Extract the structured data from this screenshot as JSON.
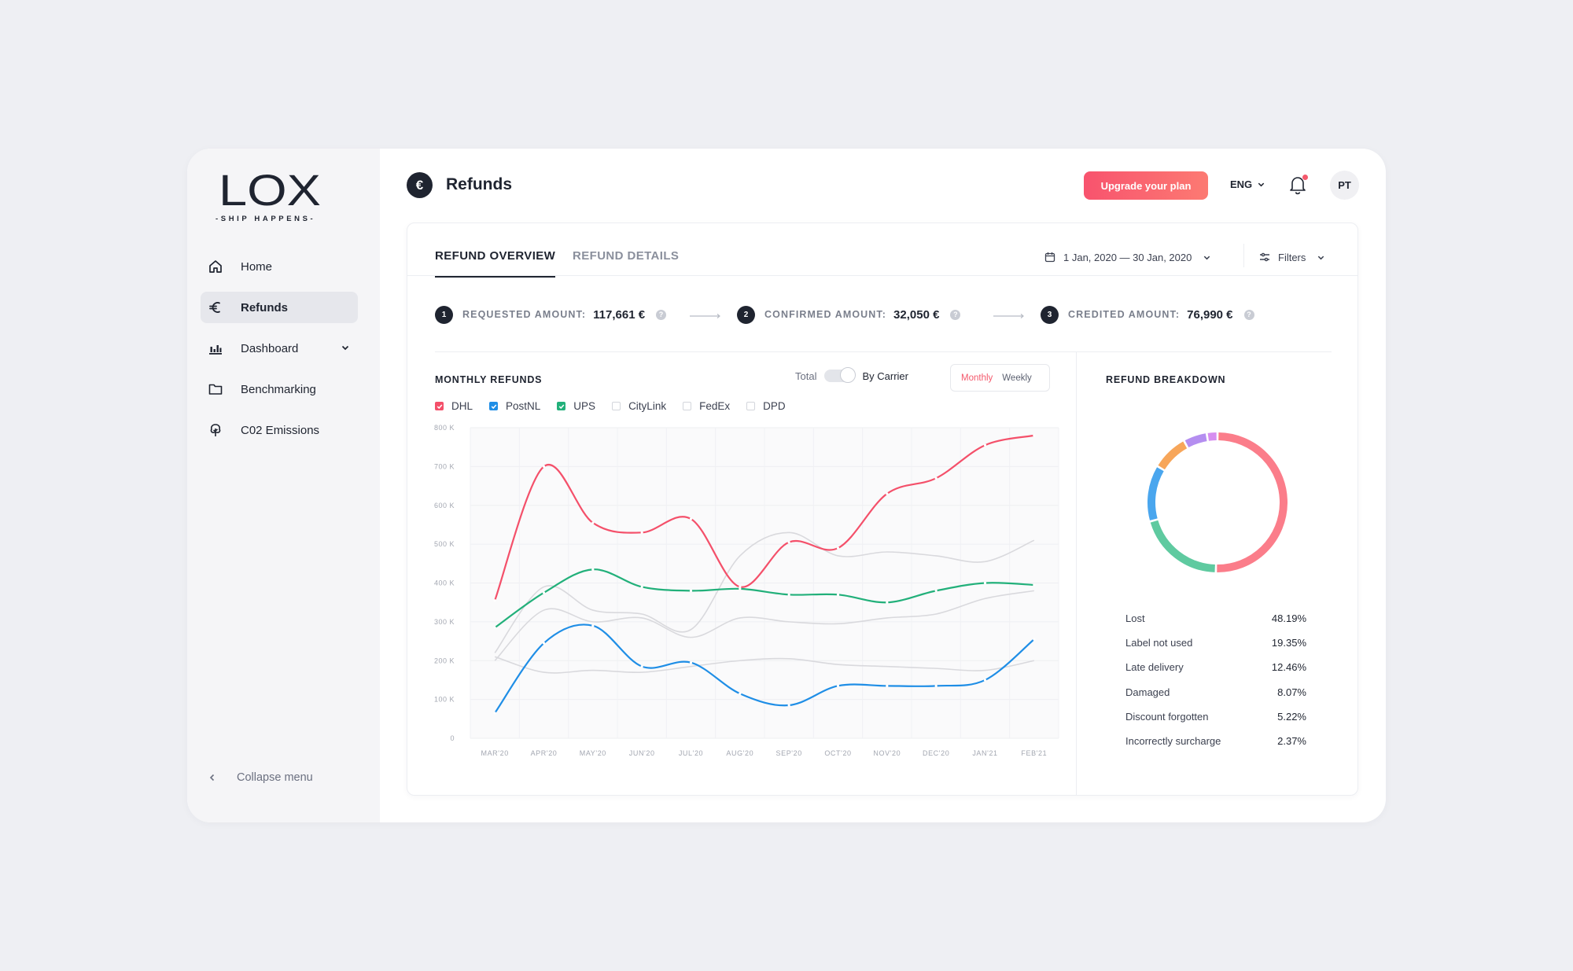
{
  "sidebar": {
    "logo_text": "LOX",
    "logo_tagline": "-SHIP HAPPENS-",
    "items": [
      {
        "label": "Home",
        "icon": "home-icon"
      },
      {
        "label": "Refunds",
        "icon": "euro-icon"
      },
      {
        "label": "Dashboard",
        "icon": "bar-chart-icon"
      },
      {
        "label": "Benchmarking",
        "icon": "folder-icon"
      },
      {
        "label": "C02 Emissions",
        "icon": "tree-icon"
      }
    ],
    "active": "Refunds",
    "collapse_label": "Collapse menu"
  },
  "header": {
    "icon": "€",
    "title": "Refunds",
    "upgrade_label": "Upgrade your plan",
    "language": "ENG",
    "avatar": "PT",
    "accent": "#f8536e"
  },
  "tabs": [
    {
      "label": "REFUND OVERVIEW",
      "active": true
    },
    {
      "label": "REFUND DETAILS",
      "active": false
    }
  ],
  "date_range": "1 Jan, 2020 — 30 Jan, 2020",
  "filters_label": "Filters",
  "steps": [
    {
      "num": "1",
      "label": "REQUESTED AMOUNT:",
      "value": "117,661 €",
      "help": "?"
    },
    {
      "num": "2",
      "label": "CONFIRMED AMOUNT:",
      "value": "32,050 €",
      "help": "?"
    },
    {
      "num": "3",
      "label": "CREDITED AMOUNT:",
      "value": "76,990 €",
      "help": "?"
    }
  ],
  "monthly": {
    "title": "MONTHLY REFUNDS",
    "toggle_left": "Total",
    "toggle_right": "By Carrier",
    "period_options": [
      "Monthly",
      "Weekly"
    ],
    "period_selected": "Monthly"
  },
  "legend": [
    {
      "name": "DHL",
      "checked": true,
      "color": "#f4506a"
    },
    {
      "name": "PostNL",
      "checked": true,
      "color": "#1f8ee6"
    },
    {
      "name": "UPS",
      "checked": true,
      "color": "#22b07a"
    },
    {
      "name": "CityLink",
      "checked": false,
      "color": "#d9d9dd"
    },
    {
      "name": "FedEx",
      "checked": false,
      "color": "#d9d9dd"
    },
    {
      "name": "DPD",
      "checked": false,
      "color": "#d9d9dd"
    }
  ],
  "chart_data": {
    "type": "line",
    "x": [
      "MAR'20",
      "APR'20",
      "MAY'20",
      "JUN'20",
      "JUL'20",
      "AUG'20",
      "SEP'20",
      "OCT'20",
      "NOV'20",
      "DEC'20",
      "JAN'21",
      "FEB'21"
    ],
    "y_ticks": [
      "0",
      "100 K",
      "200 K",
      "300 K",
      "400 K",
      "500 K",
      "600 K",
      "700 K",
      "800 K"
    ],
    "ylim": [
      0,
      800000
    ],
    "grid": true,
    "series": [
      {
        "name": "DHL",
        "color": "#f4506a",
        "highlight": true,
        "values": [
          355000,
          700000,
          555000,
          530000,
          565000,
          390000,
          505000,
          490000,
          630000,
          670000,
          755000,
          780000
        ]
      },
      {
        "name": "PostNL",
        "color": "#1f8ee6",
        "highlight": true,
        "values": [
          65000,
          245000,
          290000,
          185000,
          195000,
          115000,
          85000,
          135000,
          135000,
          135000,
          150000,
          255000
        ]
      },
      {
        "name": "UPS",
        "color": "#22b07a",
        "highlight": true,
        "values": [
          285000,
          375000,
          435000,
          390000,
          380000,
          385000,
          370000,
          370000,
          350000,
          380000,
          400000,
          395000
        ]
      },
      {
        "name": "CityLink",
        "color": "#d9d9dd",
        "highlight": false,
        "values": [
          220000,
          390000,
          330000,
          320000,
          280000,
          470000,
          530000,
          470000,
          480000,
          470000,
          455000,
          510000
        ]
      },
      {
        "name": "FedEx",
        "color": "#d9d9dd",
        "highlight": false,
        "values": [
          200000,
          330000,
          300000,
          310000,
          260000,
          310000,
          300000,
          295000,
          310000,
          320000,
          360000,
          380000
        ]
      },
      {
        "name": "DPD",
        "color": "#d9d9dd",
        "highlight": false,
        "values": [
          210000,
          170000,
          175000,
          170000,
          185000,
          200000,
          205000,
          190000,
          185000,
          180000,
          175000,
          200000
        ]
      }
    ]
  },
  "breakdown": {
    "title": "REFUND BREAKDOWN",
    "items": [
      {
        "label": "Lost",
        "pct": "48.19%",
        "value": 48.19,
        "color": "#fb7d8a"
      },
      {
        "label": "Label not used",
        "pct": "19.35%",
        "value": 19.35,
        "color": "#5fcaa0"
      },
      {
        "label": "Late delivery",
        "pct": "12.46%",
        "value": 12.46,
        "color": "#4aa6ee"
      },
      {
        "label": "Damaged",
        "pct": "8.07%",
        "value": 8.07,
        "color": "#f7a65a"
      },
      {
        "label": "Discount forgotten",
        "pct": "5.22%",
        "value": 5.22,
        "color": "#b48ef0"
      },
      {
        "label": "Incorrectly surcharge",
        "pct": "2.37%",
        "value": 2.37,
        "color": "#d68ef0"
      }
    ]
  }
}
